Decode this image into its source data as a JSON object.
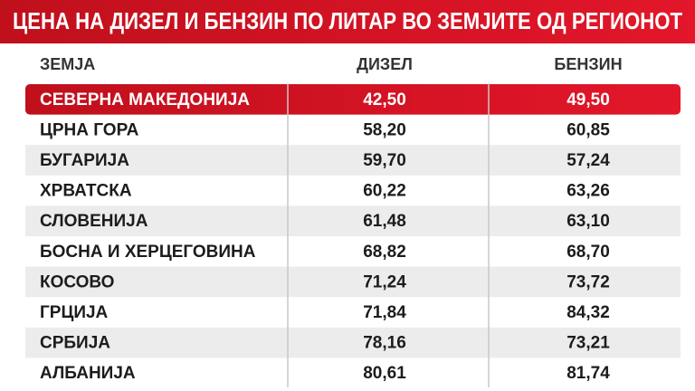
{
  "title": "ЦЕНА НА ДИЗЕЛ И БЕНЗИН ПО ЛИТАР ВО ЗЕМЈИТЕ ОД РЕГИОНОТ",
  "table": {
    "header": [
      "ЗЕМЈА",
      "ДИЗЕЛ",
      "БЕНЗИН"
    ],
    "rows": [
      [
        "СЕВЕРНА МАКЕДОНИЈА",
        "42,50",
        "49,50"
      ],
      [
        "ЦРНА ГОРА",
        "58,20",
        "60,85"
      ],
      [
        "БУГАРИЈА",
        "59,70",
        "57,24"
      ],
      [
        "ХРВАТСКА",
        "60,22",
        "63,26"
      ],
      [
        "СЛОВЕНИЈА",
        "61,48",
        "63,10"
      ],
      [
        "БОСНА И ХЕРЦЕГОВИНА",
        "68,82",
        "68,70"
      ],
      [
        "КОСОВО",
        "71,24",
        "73,72"
      ],
      [
        "ГРЦИЈА",
        "71,84",
        "84,32"
      ],
      [
        "СРБИЈА",
        "78,16",
        "73,21"
      ],
      [
        "АЛБАНИЈА",
        "80,61",
        "81,74"
      ]
    ]
  }
}
